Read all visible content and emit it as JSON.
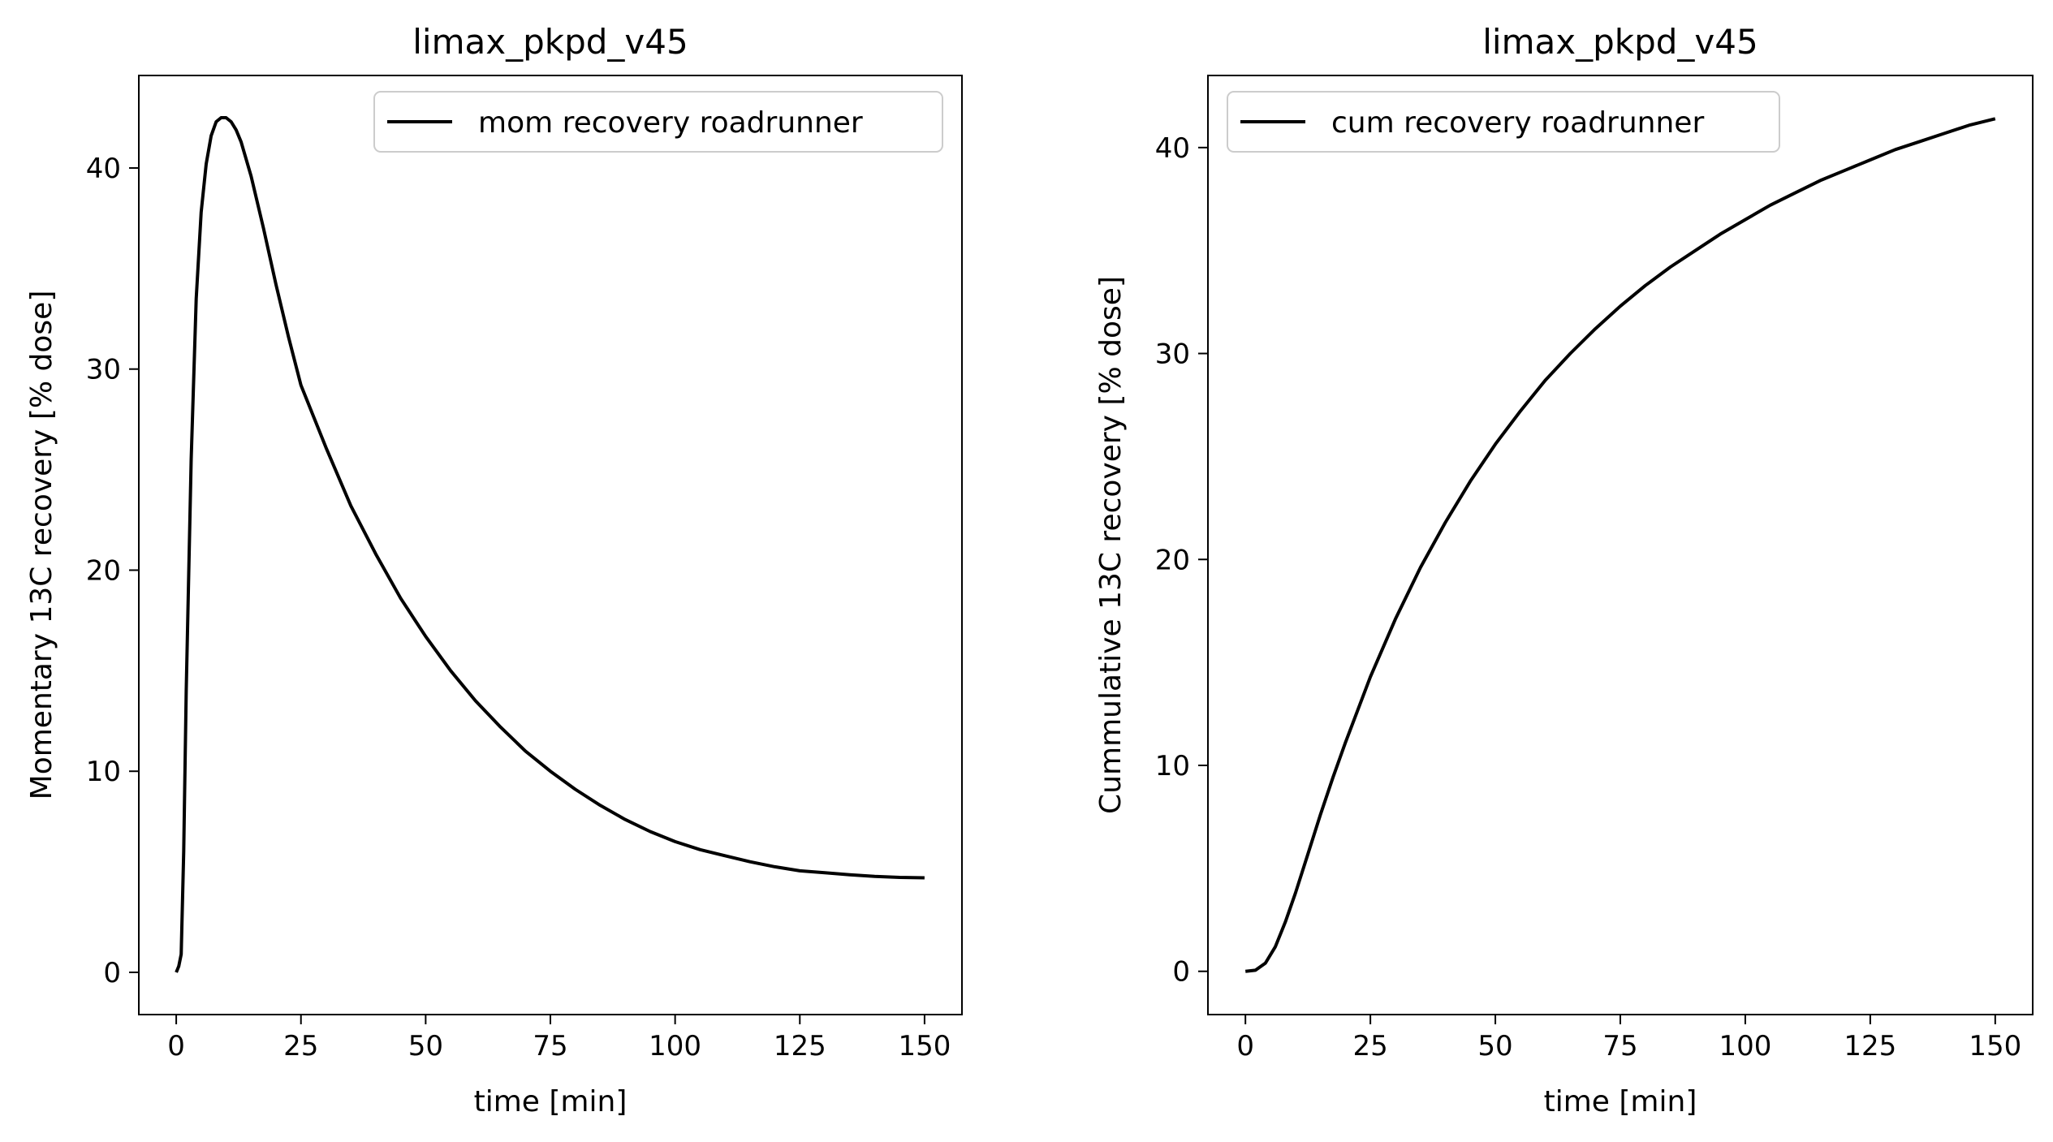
{
  "chart_data": [
    {
      "type": "line",
      "title": "limax_pkpd_v45",
      "xlabel": "time [min]",
      "ylabel": "Momentary 13C recovery [% dose]",
      "xlim": [
        -7.5,
        157.5
      ],
      "ylim": [
        -2.1,
        44.6
      ],
      "xticks": [
        0,
        25,
        50,
        75,
        100,
        125,
        150
      ],
      "yticks": [
        0,
        10,
        20,
        30,
        40
      ],
      "legend_position": "upper right",
      "grid": false,
      "series": [
        {
          "name": "mom recovery roadrunner",
          "color": "#000000",
          "x": [
            0,
            0.5,
            1,
            1.5,
            2,
            3,
            4,
            5,
            6,
            7,
            8,
            9,
            10,
            11,
            12,
            13,
            15,
            17.5,
            20,
            22.5,
            25,
            30,
            35,
            40,
            45,
            50,
            55,
            60,
            65,
            70,
            75,
            80,
            85,
            90,
            95,
            100,
            105,
            110,
            115,
            120,
            125,
            130,
            135,
            140,
            145,
            150
          ],
          "y": [
            0,
            0.3,
            0.9,
            6.0,
            14.0,
            25.5,
            33.5,
            37.8,
            40.2,
            41.6,
            42.3,
            42.5,
            42.5,
            42.3,
            41.9,
            41.3,
            39.6,
            37.0,
            34.2,
            31.6,
            29.2,
            26.1,
            23.2,
            20.8,
            18.6,
            16.7,
            15.0,
            13.5,
            12.2,
            11.0,
            10.0,
            9.1,
            8.3,
            7.6,
            7.0,
            6.5,
            6.1,
            5.8,
            5.5,
            5.25,
            5.05,
            4.95,
            4.85,
            4.77,
            4.72,
            4.7
          ]
        }
      ]
    },
    {
      "type": "line",
      "title": "limax_pkpd_v45",
      "xlabel": "time [min]",
      "ylabel": "Cummulative 13C recovery [% dose]",
      "xlim": [
        -7.5,
        157.5
      ],
      "ylim": [
        -2.1,
        43.5
      ],
      "xticks": [
        0,
        25,
        50,
        75,
        100,
        125,
        150
      ],
      "yticks": [
        0,
        10,
        20,
        30,
        40
      ],
      "legend_position": "upper left",
      "grid": false,
      "series": [
        {
          "name": "cum recovery roadrunner",
          "color": "#000000",
          "x": [
            0,
            2,
            4,
            6,
            8,
            10,
            12.5,
            15,
            17.5,
            20,
            25,
            30,
            35,
            40,
            45,
            50,
            55,
            60,
            65,
            70,
            75,
            80,
            85,
            90,
            95,
            100,
            105,
            110,
            115,
            120,
            125,
            130,
            135,
            140,
            145,
            150
          ],
          "y": [
            0,
            0.05,
            0.4,
            1.2,
            2.4,
            3.8,
            5.7,
            7.6,
            9.4,
            11.1,
            14.3,
            17.1,
            19.6,
            21.8,
            23.8,
            25.6,
            27.2,
            28.7,
            30.0,
            31.2,
            32.3,
            33.3,
            34.2,
            35.0,
            35.8,
            36.5,
            37.2,
            37.8,
            38.4,
            38.9,
            39.4,
            39.9,
            40.3,
            40.7,
            41.1,
            41.4
          ]
        }
      ]
    }
  ]
}
